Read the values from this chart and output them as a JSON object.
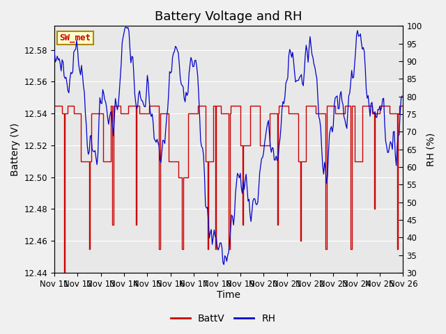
{
  "title": "Battery Voltage and RH",
  "xlabel": "Time",
  "ylabel_left": "Battery (V)",
  "ylabel_right": "RH (%)",
  "station_label": "SW_met",
  "xlim": [
    0,
    360
  ],
  "ylim_left": [
    12.44,
    12.595
  ],
  "ylim_right": [
    30,
    100
  ],
  "yticks_left": [
    12.44,
    12.46,
    12.48,
    12.5,
    12.52,
    12.54,
    12.56,
    12.58
  ],
  "yticks_right": [
    30,
    35,
    40,
    45,
    50,
    55,
    60,
    65,
    70,
    75,
    80,
    85,
    90,
    95,
    100
  ],
  "xtick_labels": [
    "Nov 11",
    "Nov 12",
    "Nov 13",
    "Nov 14",
    "Nov 15",
    "Nov 16",
    "Nov 17",
    "Nov 18",
    "Nov 19",
    "Nov 20",
    "Nov 21",
    "Nov 22",
    "Nov 23",
    "Nov 24",
    "Nov 25",
    "Nov 26"
  ],
  "xtick_positions": [
    0,
    24,
    48,
    72,
    96,
    120,
    144,
    168,
    192,
    216,
    240,
    264,
    288,
    312,
    336,
    360
  ],
  "color_battv": "#cc0000",
  "color_rh": "#0000cc",
  "bg_inner": "#e8e8e8",
  "bg_outer": "#f0f0f0",
  "legend_labels": [
    "BattV",
    "RH"
  ],
  "station_box_facecolor": "#ffffcc",
  "station_box_edgecolor": "#aa8800",
  "title_fontsize": 13,
  "label_fontsize": 10,
  "tick_fontsize": 8.5
}
